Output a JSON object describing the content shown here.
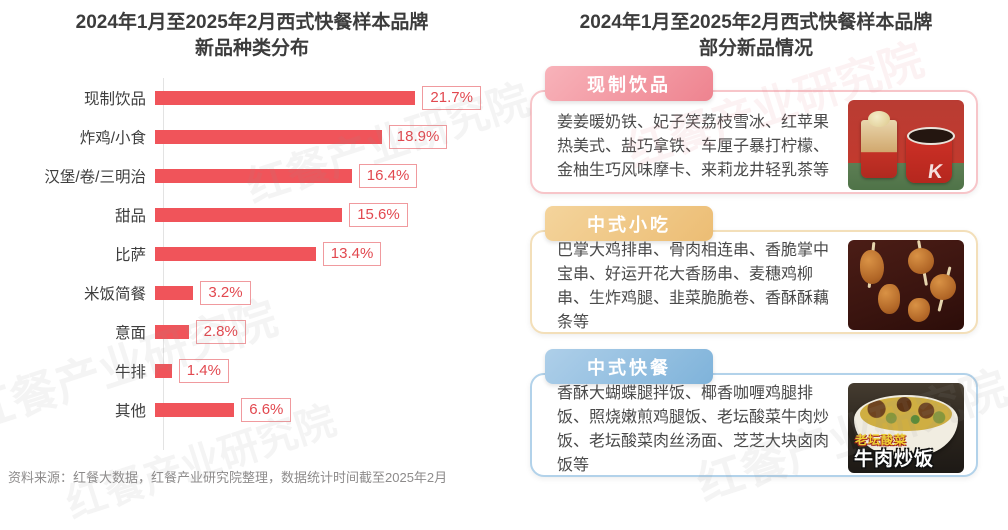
{
  "left_panel": {
    "title_line1": "2024年1月至2025年2月西式快餐样本品牌",
    "title_line2": "新品种类分布"
  },
  "chart_data": {
    "type": "bar",
    "orientation": "horizontal",
    "title": "2024年1月至2025年2月西式快餐样本品牌新品种类分布",
    "categories": [
      "现制饮品",
      "炸鸡/小食",
      "汉堡/卷/三明治",
      "甜品",
      "比萨",
      "米饭简餐",
      "意面",
      "牛排",
      "其他"
    ],
    "values": [
      21.7,
      18.9,
      16.4,
      15.6,
      13.4,
      3.2,
      2.8,
      1.4,
      6.6
    ],
    "value_labels": [
      "21.7%",
      "18.9%",
      "16.4%",
      "15.6%",
      "13.4%",
      "3.2%",
      "2.8%",
      "1.4%",
      "6.6%"
    ],
    "unit": "%",
    "xlim": [
      0,
      25
    ],
    "bar_color": "#f0545a",
    "grid": false,
    "legend": false
  },
  "right_panel": {
    "title_line1": "2024年1月至2025年2月西式快餐样本品牌",
    "title_line2": "部分新品情况",
    "cards": [
      {
        "label": "现制饮品",
        "accent": "#ee838f",
        "items": [
          "姜姜暖奶铁",
          "妃子笑荔枝雪冰",
          "红苹果热美式",
          "盐巧拿铁",
          "车厘子暴打柠檬",
          "金柚生巧风味摩卡",
          "来莉龙井轻乳茶"
        ],
        "suffix": "等",
        "photo": "kfc-red-cup-drinks-photo"
      },
      {
        "label": "中式小吃",
        "accent": "#ecbd74",
        "items": [
          "巴掌大鸡排串",
          "骨肉相连串",
          "香脆掌中宝串",
          "好运开花大香肠串",
          "麦穗鸡柳串",
          "生炸鸡腿",
          "韭菜脆脆卷",
          "香酥酥藕条"
        ],
        "suffix": "等",
        "photo": "fried-skewers-photo"
      },
      {
        "label": "中式快餐",
        "accent": "#7fb3da",
        "items": [
          "香酥大蝴蝶腿拌饭",
          "椰香咖喱鸡腿排饭",
          "照烧嫩煎鸡腿饭",
          "老坛酸菜牛肉炒饭",
          "老坛酸菜肉丝汤面",
          "芝芝大块卤肉饭"
        ],
        "suffix": "等",
        "photo": "beef-fried-rice-photo",
        "photo_caption_small": "老坛酸菜",
        "photo_caption_large": "牛肉炒饭"
      }
    ]
  },
  "footer": {
    "source_text": "资料来源：红餐大数据，红餐产业研究院整理，数据统计时间截至2025年2月"
  },
  "watermark": {
    "text": "红餐产业研究院"
  }
}
